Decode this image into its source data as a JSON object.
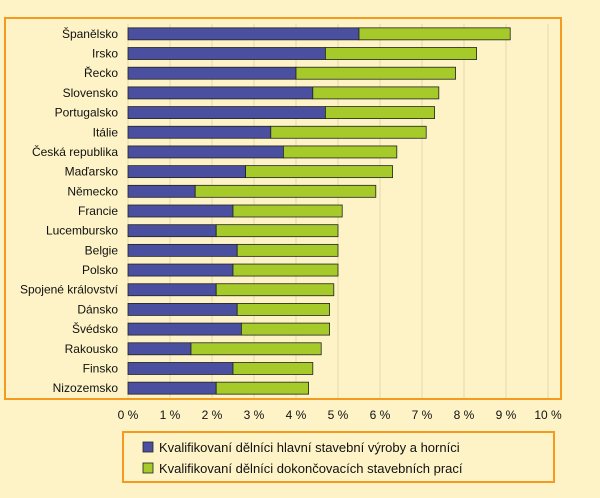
{
  "chart_data": {
    "type": "bar",
    "orientation": "horizontal",
    "stacked": true,
    "categories": [
      "Španělsko",
      "Irsko",
      "Řecko",
      "Slovensko",
      "Portugalsko",
      "Itálie",
      "Česká republika",
      "Maďarsko",
      "Německo",
      "Francie",
      "Lucembursko",
      "Belgie",
      "Polsko",
      "Spojené království",
      "Dánsko",
      "Švédsko",
      "Rakousko",
      "Finsko",
      "Nizozemsko"
    ],
    "series": [
      {
        "name": "Kvalifikovaní dělníci hlavní stavební výroby a horníci",
        "color": "#4b4f9f",
        "values": [
          5.5,
          4.7,
          4.0,
          4.4,
          4.7,
          3.4,
          3.7,
          2.8,
          1.6,
          2.5,
          2.1,
          2.6,
          2.5,
          2.1,
          2.6,
          2.7,
          1.5,
          2.5,
          2.1
        ]
      },
      {
        "name": "Kvalifikovaní dělníci dokončovacích stavebních prací",
        "color": "#a6ca2a",
        "values": [
          3.6,
          3.6,
          3.8,
          3.0,
          2.6,
          3.7,
          2.7,
          3.5,
          4.3,
          2.6,
          2.9,
          2.4,
          2.5,
          2.8,
          2.2,
          2.1,
          3.1,
          1.9,
          2.2
        ]
      }
    ],
    "xticks": [
      "0 %",
      "1 %",
      "2 %",
      "3 %",
      "4 %",
      "5 %",
      "6 %",
      "7 %",
      "8 %",
      "9 %",
      "10 %"
    ],
    "xlim": [
      0,
      10
    ],
    "grid": true,
    "legend_position": "bottom",
    "colors": {
      "background": "#fdf3c6",
      "border": "#f39a1f",
      "grid": "#e4d9a8"
    }
  }
}
